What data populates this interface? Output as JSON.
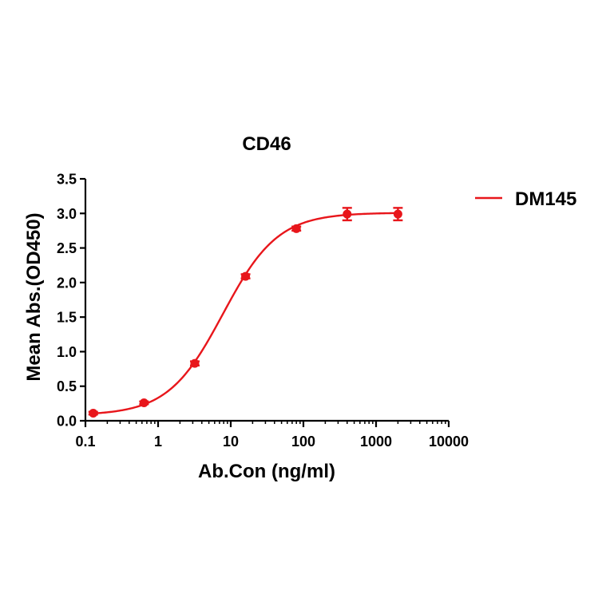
{
  "chart_data": {
    "type": "scatter",
    "title": "CD46",
    "xlabel": "Ab.Con (ng/ml)",
    "ylabel": "Mean Abs.(OD450)",
    "xscale": "log",
    "xlim": [
      0.1,
      10000
    ],
    "ylim": [
      0,
      3.5
    ],
    "xticks": [
      0.1,
      1,
      10,
      100,
      1000,
      10000
    ],
    "xtick_labels": [
      "0.1",
      "1",
      "10",
      "100",
      "1000",
      "10000"
    ],
    "yticks": [
      0,
      0.5,
      1,
      1.5,
      2,
      2.5,
      3,
      3.5
    ],
    "ytick_labels": [
      "0.0",
      "0.5",
      "1.0",
      "1.5",
      "2.0",
      "2.5",
      "3.0",
      "3.5"
    ],
    "grid": false,
    "legend_position": "top-right",
    "series": [
      {
        "name": "DM145",
        "color": "#e8161b",
        "fit": "4PL",
        "x": [
          0.128,
          0.64,
          3.2,
          16,
          80,
          400,
          2000
        ],
        "y": [
          0.11,
          0.26,
          0.83,
          2.09,
          2.78,
          2.99,
          2.99
        ],
        "error": [
          0.02,
          0.02,
          0.03,
          0.03,
          0.03,
          0.09,
          0.09
        ]
      }
    ]
  }
}
